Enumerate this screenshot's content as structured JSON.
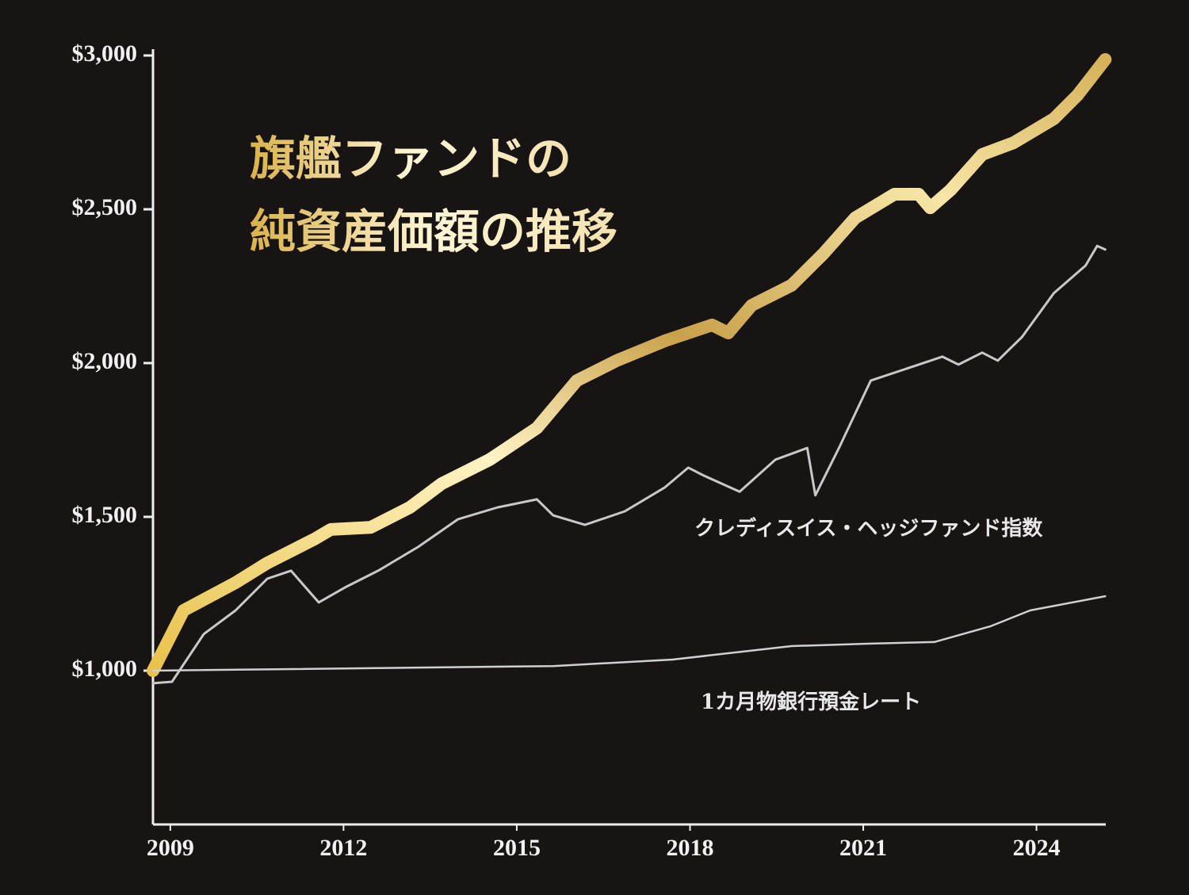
{
  "chart_data": {
    "type": "line",
    "title": [
      "旗艦ファンドの",
      "純資産価額の推移"
    ],
    "xlim": [
      2008.7,
      2025.2
    ],
    "xticks": [
      2009,
      2012,
      2015,
      2018,
      2021,
      2024
    ],
    "ylim": [
      500,
      3000
    ],
    "yticks": [
      {
        "value": 1000,
        "label": "$1,000"
      },
      {
        "value": 1500,
        "label": "$1,500"
      },
      {
        "value": 2000,
        "label": "$2,000"
      },
      {
        "value": 2500,
        "label": "$2,500"
      },
      {
        "value": 3000,
        "label": "$3,000"
      }
    ],
    "series": [
      {
        "color": "#d9b24a",
        "x": [
          2008.7,
          2009.23,
          2010.13,
          2010.68,
          2011.5,
          2011.78,
          2012.47,
          2013.15,
          2013.7,
          2014.53,
          2015.35,
          2016.04,
          2016.73,
          2017.56,
          2018.38,
          2018.66,
          2019.07,
          2019.76,
          2020.31,
          2020.86,
          2021.54,
          2021.96,
          2022.16,
          2022.51,
          2023.06,
          2023.6,
          2024.3,
          2024.71,
          2025.19
        ],
        "values": [
          1000,
          1196,
          1286,
          1350,
          1428,
          1459,
          1466,
          1531,
          1608,
          1686,
          1789,
          1943,
          2008,
          2072,
          2124,
          2098,
          2188,
          2253,
          2356,
          2472,
          2549,
          2549,
          2505,
          2562,
          2678,
          2716,
          2794,
          2871,
          2987
        ]
      },
      {
        "name": "クレディスイス・ヘッジファンド指数",
        "color": "#c8c8c8",
        "x": [
          2008.7,
          2009.03,
          2009.58,
          2010.13,
          2010.68,
          2011.09,
          2011.57,
          2012.05,
          2012.6,
          2013.29,
          2013.98,
          2014.67,
          2015.35,
          2015.63,
          2016.18,
          2016.87,
          2017.56,
          2017.97,
          2018.24,
          2018.86,
          2019.48,
          2020.03,
          2020.17,
          2020.58,
          2021.13,
          2021.96,
          2022.37,
          2022.65,
          2023.06,
          2023.33,
          2023.75,
          2024.3,
          2024.85,
          2025.05,
          2025.19
        ],
        "values": [
          959,
          964,
          1119,
          1196,
          1299,
          1325,
          1222,
          1273,
          1325,
          1402,
          1492,
          1531,
          1557,
          1505,
          1474,
          1518,
          1595,
          1660,
          1634,
          1582,
          1686,
          1724,
          1570,
          1724,
          1943,
          1995,
          2021,
          1995,
          2034,
          2008,
          2085,
          2227,
          2317,
          2381,
          2369
        ]
      },
      {
        "name": "1カ月物銀行預金レート",
        "color": "#d0d0d0",
        "x": [
          2008.7,
          2015.63,
          2017.7,
          2019.76,
          2021.13,
          2022.23,
          2023.2,
          2023.89,
          2025.19
        ],
        "values": [
          1000,
          1015,
          1036,
          1080,
          1088,
          1093,
          1144,
          1196,
          1242
        ]
      }
    ]
  }
}
